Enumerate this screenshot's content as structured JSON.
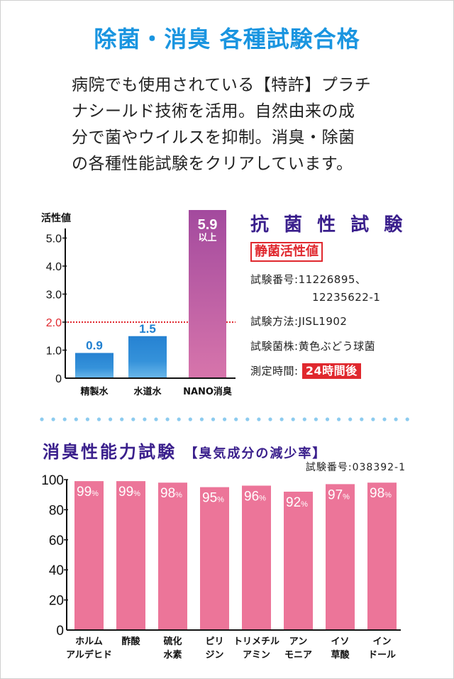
{
  "header": {
    "title": "除菌・消臭 各種試験合格",
    "intro_lines": [
      "病院でも使用されている【特許】プラチ",
      "ナシールド技術を活用。自然由来の成",
      "分で菌やウイルスを抑制。消臭・除菌",
      "の各種性能試験をクリアしています。"
    ]
  },
  "antibacterial": {
    "title": "抗 菌 性 試 験",
    "badge": "静菌活性値",
    "rows": [
      {
        "label": "試験番号",
        "value": "11226895、",
        "value2": "12235622-1"
      },
      {
        "label": "試験方法",
        "value": "JISL1902"
      },
      {
        "label": "試験菌株",
        "value": "黄色ぶどう球菌"
      },
      {
        "label": "測定時間",
        "value": "24時間後"
      }
    ],
    "separator": ":"
  },
  "deodorant": {
    "title": "消臭性能力試験",
    "subtitle": "【臭気成分の減少率】",
    "test_number": "試験番号:038392-1"
  },
  "colors": {
    "title_blue": "#1a95e0",
    "heading_purple": "#3a1f8c",
    "accent_red": "#e0282e",
    "bar_blue": "#2b8ad6",
    "bar_nano": "#b956a8",
    "bar_pink": "#ec7599",
    "divider_dots": "#8ccbef"
  },
  "chart_data": [
    {
      "type": "bar",
      "title": "抗菌性試験 静菌活性値",
      "ylabel": "活性値",
      "xlabel": "",
      "categories": [
        "精製水",
        "水道水",
        "NANO消臭"
      ],
      "values": [
        0.9,
        1.5,
        5.9
      ],
      "data_labels": [
        "0.9",
        "1.5",
        "5.9"
      ],
      "data_label_suffix": [
        "",
        "",
        "以上"
      ],
      "ylim": [
        0,
        5.9
      ],
      "yticks": [
        0,
        1.0,
        2.0,
        3.0,
        4.0,
        5.0
      ],
      "ytick_labels": [
        "0",
        "1.0",
        "2.0",
        "3.0",
        "4.0",
        "5.0"
      ],
      "reference_line": {
        "value": 2.0,
        "style": "dotted",
        "color": "#e0282e"
      },
      "grid": false,
      "legend": "none"
    },
    {
      "type": "bar",
      "title": "消臭性能力試験【臭気成分の減少率】",
      "xlabel": "",
      "ylabel": "",
      "categories": [
        [
          "ホルム",
          "アルデヒド"
        ],
        [
          "酢酸"
        ],
        [
          "硫化",
          "水素"
        ],
        [
          "ピリ",
          "ジン"
        ],
        [
          "トリメチル",
          "アミン"
        ],
        [
          "アン",
          "モニア"
        ],
        [
          "イソ",
          "草酸"
        ],
        [
          "イン",
          "ドール"
        ]
      ],
      "values": [
        99,
        99,
        98,
        95,
        96,
        92,
        97,
        98
      ],
      "unit": "%",
      "ylim": [
        0,
        100
      ],
      "yticks": [
        0,
        20,
        40,
        60,
        80,
        100
      ],
      "ytick_labels": [
        "0",
        "20",
        "40",
        "60",
        "80",
        "100"
      ],
      "grid": false,
      "legend": "none"
    }
  ]
}
